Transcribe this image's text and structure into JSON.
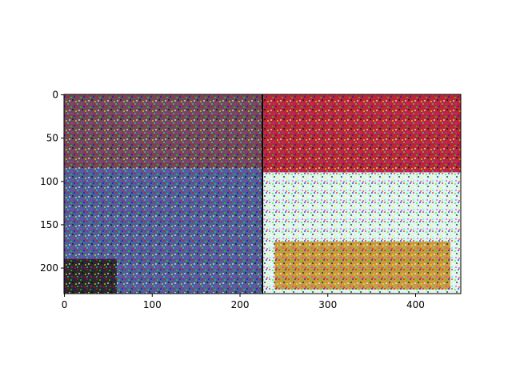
{
  "chart_data": {
    "type": "heatmap",
    "title": "",
    "xlabel": "",
    "ylabel": "",
    "xlim": [
      -0.5,
      451.5
    ],
    "ylim": [
      229.5,
      -0.5
    ],
    "y_inverted": true,
    "xticks": [
      0,
      100,
      200,
      300,
      400
    ],
    "yticks": [
      0,
      50,
      100,
      150,
      200
    ],
    "grid": false,
    "panels": [
      {
        "description": "left half, dark noisy RGB image",
        "x_range": [
          0,
          226
        ],
        "base_color": "#5a6a8c",
        "regions": [
          {
            "x": [
              0,
              226
            ],
            "y": [
              0,
              85
            ],
            "color": "#6e4a5a"
          },
          {
            "x": [
              0,
              226
            ],
            "y": [
              85,
              230
            ],
            "color": "#4e5f9a"
          },
          {
            "x": [
              0,
              60
            ],
            "y": [
              190,
              230
            ],
            "color": "#2a2a2a"
          }
        ]
      },
      {
        "description": "right half, bright noisy RGB image",
        "x_range": [
          226,
          452
        ],
        "base_color": "#d8f0ec",
        "regions": [
          {
            "x": [
              226,
              452
            ],
            "y": [
              0,
              90
            ],
            "color": "#b52a3a"
          },
          {
            "x": [
              226,
              452
            ],
            "y": [
              90,
              230
            ],
            "color": "#dff5f0"
          },
          {
            "x": [
              240,
              440
            ],
            "y": [
              170,
              225
            ],
            "color": "#c89a40"
          }
        ]
      }
    ],
    "divider_x": 226
  }
}
